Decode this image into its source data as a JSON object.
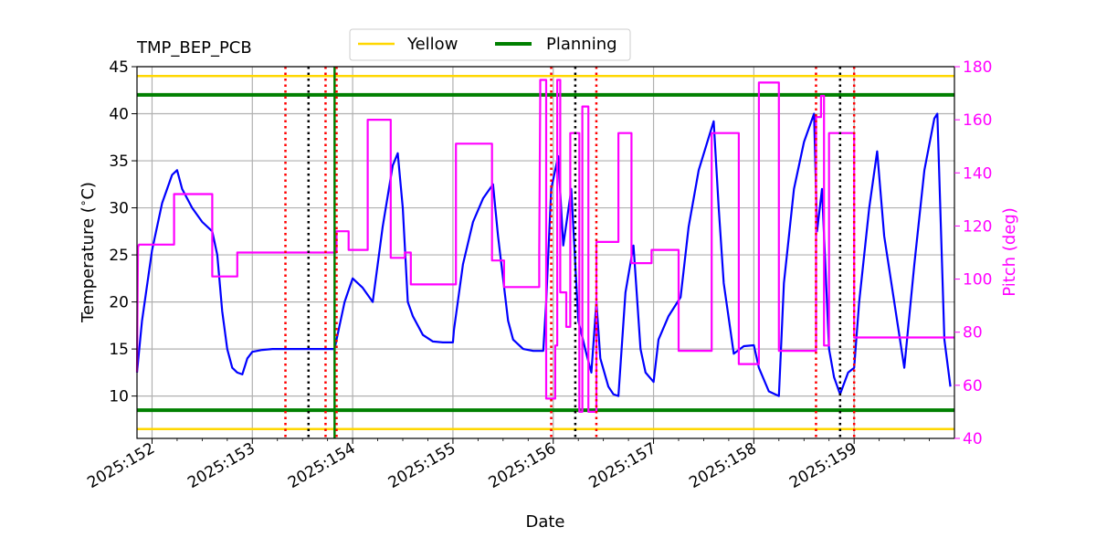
{
  "chart_data": {
    "type": "line",
    "title": "TMP_BEP_PCB",
    "xlabel": "Date",
    "ylabel": "Temperature ($^\\circ$C)",
    "y2label": "Pitch (deg)",
    "xlim": [
      151.85,
      160.0
    ],
    "ylim": [
      5.5,
      45
    ],
    "y2lim": [
      40,
      180
    ],
    "x_ticks": [
      152,
      153,
      154,
      155,
      156,
      157,
      158,
      159
    ],
    "x_tick_labels": [
      "2025:152",
      "2025:153",
      "2025:154",
      "2025:155",
      "2025:156",
      "2025:157",
      "2025:158",
      "2025:159"
    ],
    "y_ticks": [
      10,
      15,
      20,
      25,
      30,
      35,
      40,
      45
    ],
    "y_tick_labels": [
      "10",
      "15",
      "20",
      "25",
      "30",
      "35",
      "40",
      "45"
    ],
    "y2_ticks": [
      40,
      60,
      80,
      100,
      120,
      140,
      160,
      180
    ],
    "y2_tick_labels": [
      "40",
      "60",
      "80",
      "100",
      "120",
      "140",
      "160",
      "180"
    ],
    "grid": true,
    "legend": {
      "placement": "top-center",
      "entries": [
        {
          "name": "Yellow",
          "color": "#ffd700"
        },
        {
          "name": "Planning",
          "color": "#008000"
        }
      ]
    },
    "limit_lines": [
      {
        "name": "Yellow",
        "values": [
          44.0,
          6.5
        ],
        "color": "#ffd700"
      },
      {
        "name": "Planning",
        "values": [
          42.0,
          8.5
        ],
        "color": "#008000"
      }
    ],
    "vertical_markers": [
      {
        "x": 153.33,
        "color": "#ff0000",
        "style": "dotted"
      },
      {
        "x": 153.56,
        "color": "#000000",
        "style": "dotted"
      },
      {
        "x": 153.73,
        "color": "#ff0000",
        "style": "dotted"
      },
      {
        "x": 153.82,
        "color": "#008000",
        "style": "solid"
      },
      {
        "x": 153.84,
        "color": "#ff0000",
        "style": "dotted"
      },
      {
        "x": 155.98,
        "color": "#ff0000",
        "style": "dotted"
      },
      {
        "x": 156.22,
        "color": "#000000",
        "style": "dotted"
      },
      {
        "x": 156.43,
        "color": "#ff0000",
        "style": "dotted"
      },
      {
        "x": 158.62,
        "color": "#ff0000",
        "style": "dotted"
      },
      {
        "x": 158.86,
        "color": "#000000",
        "style": "dotted"
      },
      {
        "x": 159.0,
        "color": "#ff0000",
        "style": "dotted"
      }
    ],
    "series": [
      {
        "color": "#0000ff",
        "axis": "left",
        "x": [
          151.85,
          151.9,
          152.0,
          152.1,
          152.2,
          152.25,
          152.3,
          152.4,
          152.5,
          152.6,
          152.65,
          152.7,
          152.75,
          152.8,
          152.85,
          152.9,
          152.95,
          153.0,
          153.1,
          153.2,
          153.4,
          153.6,
          153.8,
          153.82,
          153.88,
          153.92,
          154.0,
          154.1,
          154.2,
          154.3,
          154.4,
          154.45,
          154.5,
          154.55,
          154.6,
          154.7,
          154.8,
          154.9,
          155.0,
          155.01,
          155.1,
          155.2,
          155.3,
          155.4,
          155.45,
          155.55,
          155.6,
          155.7,
          155.8,
          155.9,
          155.93,
          155.98,
          156.05,
          156.1,
          156.18,
          156.25,
          156.33,
          156.38,
          156.43,
          156.47,
          156.55,
          156.6,
          156.65,
          156.72,
          156.8,
          156.87,
          156.92,
          157.0,
          157.05,
          157.15,
          157.27,
          157.35,
          157.45,
          157.55,
          157.6,
          157.65,
          157.7,
          157.8,
          157.9,
          158.0,
          158.05,
          158.15,
          158.25,
          158.3,
          158.4,
          158.5,
          158.6,
          158.63,
          158.68,
          158.75,
          158.8,
          158.86,
          158.94,
          159.0,
          159.05,
          159.15,
          159.23,
          159.3,
          159.4,
          159.5,
          159.6,
          159.7,
          159.8,
          159.83,
          159.9,
          159.96
        ],
        "values": [
          12.5,
          18.0,
          25.5,
          30.5,
          33.5,
          34.0,
          32.0,
          30.0,
          28.5,
          27.5,
          25.0,
          19.0,
          15.0,
          13.0,
          12.5,
          12.3,
          14.0,
          14.7,
          14.9,
          15.0,
          15.0,
          15.0,
          15.0,
          15.0,
          18.0,
          20.0,
          22.5,
          21.5,
          20.0,
          28.0,
          34.5,
          35.8,
          30.0,
          20.0,
          18.5,
          16.5,
          15.8,
          15.7,
          15.7,
          17.0,
          24.0,
          28.5,
          31.0,
          32.5,
          27.0,
          18.0,
          16.0,
          15.0,
          14.8,
          14.8,
          20.0,
          32.0,
          35.5,
          26.0,
          32.0,
          18.0,
          14.5,
          12.5,
          20.0,
          14.0,
          11.0,
          10.2,
          10.0,
          21.0,
          26.0,
          15.0,
          12.5,
          11.5,
          16.0,
          18.5,
          20.5,
          28.0,
          34.0,
          37.5,
          39.2,
          30.0,
          22.0,
          14.5,
          15.3,
          15.4,
          13.0,
          10.5,
          10.0,
          22.0,
          32.0,
          37.0,
          40.0,
          27.5,
          32.0,
          15.0,
          12.0,
          10.2,
          12.5,
          13.0,
          20.0,
          30.0,
          36.0,
          27.0,
          20.0,
          13.0,
          24.0,
          34.0,
          39.5,
          40.0,
          16.0,
          11.0
        ]
      },
      {
        "color": "#ff00ff",
        "axis": "right",
        "x": [
          151.85,
          151.86,
          151.87,
          152.22,
          152.22,
          152.6,
          152.6,
          152.85,
          152.85,
          153.84,
          153.84,
          153.96,
          153.96,
          154.15,
          154.15,
          154.38,
          154.38,
          154.52,
          154.52,
          154.58,
          154.58,
          154.62,
          154.62,
          155.03,
          155.03,
          155.39,
          155.39,
          155.51,
          155.51,
          155.86,
          155.86,
          155.87,
          155.87,
          155.93,
          155.93,
          156.02,
          156.02,
          156.04,
          156.04,
          156.07,
          156.07,
          156.13,
          156.13,
          156.17,
          156.17,
          156.26,
          156.26,
          156.29,
          156.29,
          156.35,
          156.35,
          156.43,
          156.43,
          156.65,
          156.65,
          156.78,
          156.78,
          156.98,
          156.98,
          157.25,
          157.25,
          157.58,
          157.58,
          157.85,
          157.85,
          158.05,
          158.05,
          158.25,
          158.25,
          158.62,
          158.62,
          158.67,
          158.67,
          158.7,
          158.7,
          158.75,
          158.75,
          159.0,
          159.0,
          159.13,
          159.13,
          159.2,
          159.2,
          159.35,
          159.35,
          159.5,
          159.5,
          159.82,
          159.82,
          160.0
        ],
        "values": [
          65,
          112,
          113,
          113,
          132,
          132,
          101,
          101,
          110,
          110,
          118,
          118,
          111,
          111,
          160,
          160,
          108,
          108,
          110,
          110,
          98,
          98,
          98,
          98,
          151,
          151,
          107,
          107,
          97,
          97,
          110,
          170,
          175,
          175,
          55,
          55,
          75,
          75,
          175,
          175,
          95,
          95,
          82,
          82,
          155,
          155,
          50,
          50,
          165,
          165,
          50,
          50,
          114,
          114,
          155,
          155,
          106,
          106,
          111,
          111,
          73,
          73,
          155,
          155,
          68,
          68,
          174,
          174,
          73,
          73,
          161,
          161,
          169,
          169,
          75,
          75,
          155,
          155,
          78,
          78,
          78,
          78,
          78,
          78,
          78,
          78,
          78,
          78,
          78,
          78
        ]
      }
    ]
  }
}
